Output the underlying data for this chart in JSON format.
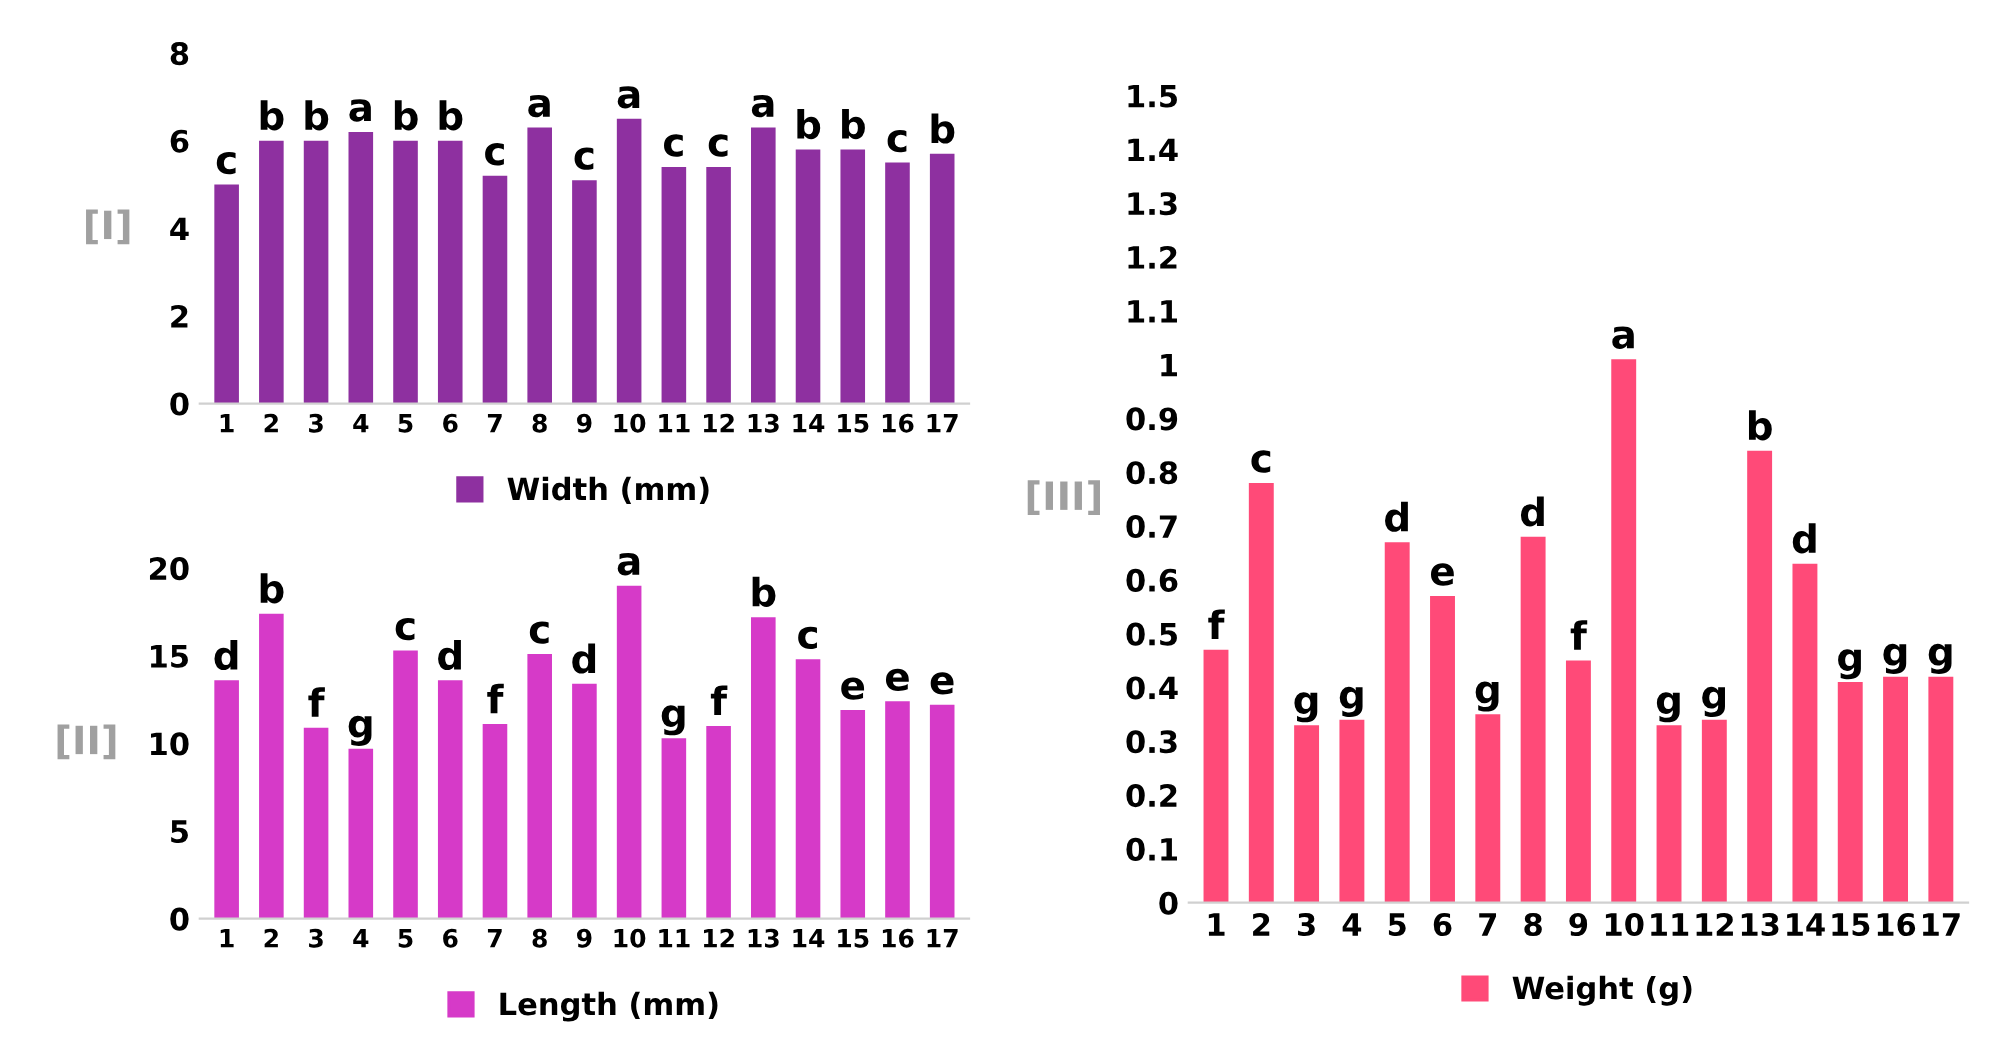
{
  "chart_data": [
    {
      "type": "bar",
      "ylabel": "[I]",
      "categories": [
        "1",
        "2",
        "3",
        "4",
        "5",
        "6",
        "7",
        "8",
        "9",
        "10",
        "11",
        "12",
        "13",
        "14",
        "15",
        "16",
        "17"
      ],
      "series": [
        {
          "name": "Width (mm)",
          "color": "#8e30a0",
          "values": [
            5.0,
            6.0,
            6.0,
            6.2,
            6.0,
            6.0,
            5.2,
            6.3,
            5.1,
            6.5,
            5.4,
            5.4,
            6.3,
            5.8,
            5.8,
            5.5,
            5.7
          ],
          "value_labels": [
            "c",
            "b",
            "b",
            "a",
            "b",
            "b",
            "c",
            "a",
            "c",
            "a",
            "c",
            "c",
            "a",
            "b",
            "b",
            "c",
            "b"
          ]
        }
      ],
      "ylim": [
        0,
        8
      ],
      "yticks": [
        0,
        2,
        4,
        6,
        8
      ],
      "grid": false,
      "legend": "bottom"
    },
    {
      "type": "bar",
      "ylabel": "[II]",
      "categories": [
        "1",
        "2",
        "3",
        "4",
        "5",
        "6",
        "7",
        "8",
        "9",
        "10",
        "11",
        "12",
        "13",
        "14",
        "15",
        "16",
        "17"
      ],
      "series": [
        {
          "name": "Length (mm)",
          "color": "#d63ac8",
          "values": [
            13.6,
            17.4,
            10.9,
            9.7,
            15.3,
            13.6,
            11.1,
            15.1,
            13.4,
            19.0,
            10.3,
            11.0,
            17.2,
            14.8,
            11.9,
            12.4,
            12.2
          ],
          "value_labels": [
            "d",
            "b",
            "f",
            "g",
            "c",
            "d",
            "f",
            "c",
            "d",
            "a",
            "g",
            "f",
            "b",
            "c",
            "e",
            "e",
            "e"
          ]
        }
      ],
      "ylim": [
        0,
        20
      ],
      "yticks": [
        0,
        5,
        10,
        15,
        20
      ],
      "grid": false,
      "legend": "bottom"
    },
    {
      "type": "bar",
      "ylabel": "[III]",
      "categories": [
        "1",
        "2",
        "3",
        "4",
        "5",
        "6",
        "7",
        "8",
        "9",
        "10",
        "11",
        "12",
        "13",
        "14",
        "15",
        "16",
        "17"
      ],
      "series": [
        {
          "name": "Weight (g)",
          "color": "#ff4a78",
          "values": [
            0.47,
            0.78,
            0.33,
            0.34,
            0.67,
            0.57,
            0.35,
            0.68,
            0.45,
            1.01,
            0.33,
            0.34,
            0.84,
            0.63,
            0.41,
            0.42,
            0.42
          ],
          "value_labels": [
            "f",
            "c",
            "g",
            "g",
            "d",
            "e",
            "g",
            "d",
            "f",
            "a",
            "g",
            "g",
            "b",
            "d",
            "g",
            "g",
            "g"
          ]
        }
      ],
      "ylim": [
        0,
        1.5
      ],
      "yticks": [
        0,
        0.1,
        0.2,
        0.3,
        0.4,
        0.5,
        0.6,
        0.7,
        0.8,
        0.9,
        1,
        1.1,
        1.2,
        1.3,
        1.4,
        1.5
      ],
      "grid": false,
      "legend": "bottom"
    }
  ]
}
